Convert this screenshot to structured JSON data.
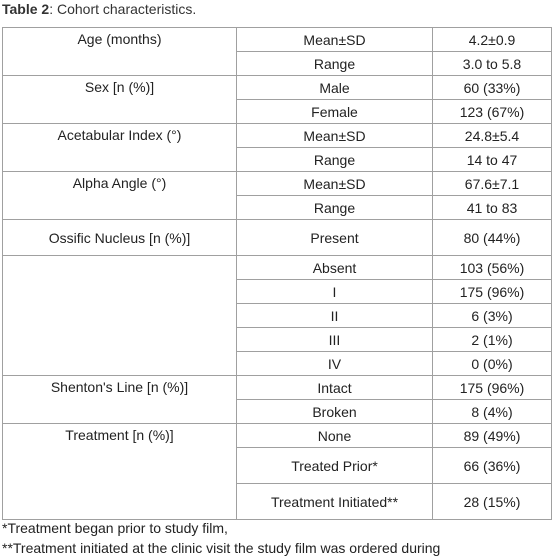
{
  "title": {
    "label": "Table 2",
    "text": ": Cohort characteristics."
  },
  "table": {
    "groups": [
      {
        "label": "Age (months)",
        "rows": [
          [
            "Mean±SD",
            "4.2±0.9"
          ],
          [
            "Range",
            "3.0 to 5.8"
          ]
        ]
      },
      {
        "label": "Sex [n (%)]",
        "rows": [
          [
            "Male",
            "60 (33%)"
          ],
          [
            "Female",
            "123 (67%)"
          ]
        ]
      },
      {
        "label": "Acetabular Index (°)",
        "rows": [
          [
            "Mean±SD",
            "24.8±5.4"
          ],
          [
            "Range",
            "14 to 47"
          ]
        ]
      },
      {
        "label": "Alpha Angle (°)",
        "rows": [
          [
            "Mean±SD",
            "67.6±7.1"
          ],
          [
            "Range",
            "41 to 83"
          ]
        ]
      },
      {
        "label": "Ossific Nucleus [n (%)]",
        "rows": [
          [
            "Present",
            "80 (44%)"
          ]
        ]
      },
      {
        "rows": [
          [
            "Absent",
            "103 (56%)"
          ],
          [
            "I",
            "175 (96%)"
          ],
          [
            "II",
            "6 (3%)"
          ],
          [
            "III",
            "2 (1%)"
          ],
          [
            "IV",
            "0 (0%)"
          ]
        ]
      },
      {
        "label": "Shenton's Line [n (%)]",
        "rows": [
          [
            "Intact",
            "175 (96%)"
          ],
          [
            "Broken",
            "8 (4%)"
          ]
        ]
      },
      {
        "label": "Treatment [n (%)]",
        "rows": [
          [
            "None",
            "89 (49%)"
          ],
          [
            "Treated Prior*",
            "66 (36%)"
          ],
          [
            "Treatment Initiated**",
            "28 (15%)"
          ]
        ]
      }
    ]
  },
  "footnotes": [
    "*Treatment began prior to study film,",
    "**Treatment initiated at the clinic visit the study film was ordered during"
  ]
}
